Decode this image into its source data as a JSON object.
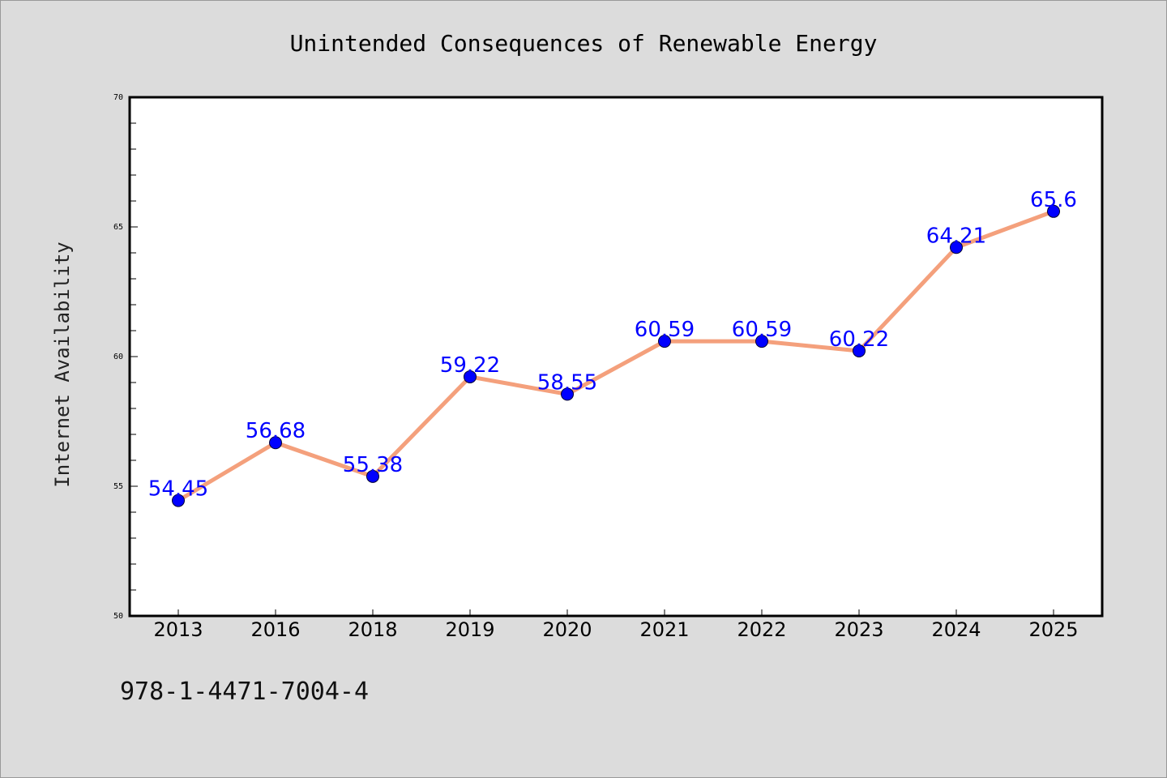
{
  "chart_data": {
    "type": "line",
    "title": "Unintended Consequences of Renewable Energy",
    "xlabel": "",
    "ylabel": "Internet Availability",
    "categories": [
      "2013",
      "2016",
      "2018",
      "2019",
      "2020",
      "2021",
      "2022",
      "2023",
      "2024",
      "2025"
    ],
    "series": [
      {
        "values": [
          54.45,
          56.68,
          55.38,
          59.22,
          58.55,
          60.59,
          60.59,
          60.22,
          64.21,
          65.6
        ],
        "labels": [
          "54.45",
          "56.68",
          "55.38",
          "59.22",
          "58.55",
          "60.59",
          "60.59",
          "60.22",
          "64.21",
          "65.6"
        ]
      }
    ],
    "ylim": [
      50,
      70
    ],
    "yticks": [
      50,
      55,
      60,
      65,
      70
    ],
    "grid": false,
    "legend": "none",
    "colors": {
      "line": "#f4a07c",
      "marker": "#0000ff",
      "data_label": "#0000ff",
      "plot_background": "#ffffff",
      "figure_background": "#dcdcdc"
    }
  },
  "footer": {
    "isbn": "978-1-4471-7004-4"
  }
}
